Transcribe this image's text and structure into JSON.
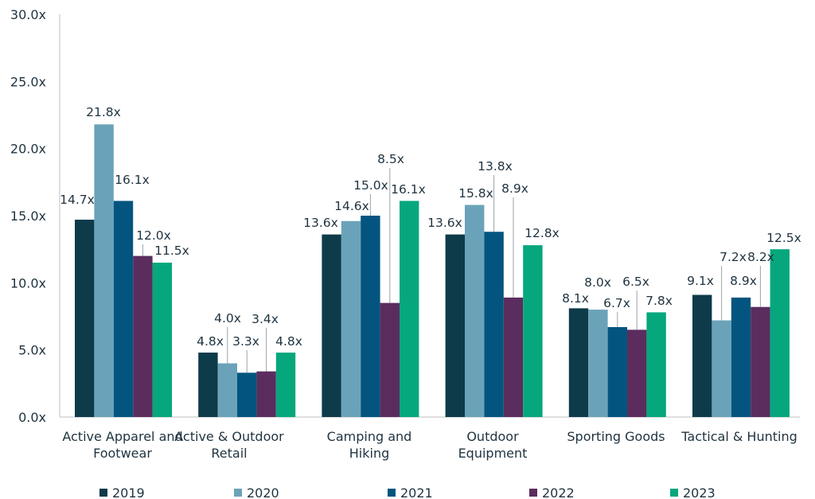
{
  "chart_data": {
    "type": "bar",
    "categories": [
      [
        "Active Apparel and",
        "Footwear"
      ],
      [
        "Active & Outdoor",
        "Retail"
      ],
      [
        "Camping and",
        "Hiking"
      ],
      [
        "Outdoor",
        "Equipment"
      ],
      [
        "Sporting Goods"
      ],
      [
        "Tactical & Hunting"
      ]
    ],
    "series": [
      {
        "name": "2019",
        "color": "#0d3b4a",
        "values": [
          14.7,
          4.8,
          13.6,
          13.6,
          8.1,
          9.1
        ],
        "labels": [
          "14.7x",
          "4.8x",
          "13.6x",
          "13.6x",
          "8.1x",
          "9.1x"
        ]
      },
      {
        "name": "2020",
        "color": "#6aa3b9",
        "values": [
          21.8,
          4.0,
          14.6,
          15.8,
          8.0,
          7.2
        ],
        "labels": [
          "21.8x",
          "4.0x",
          "14.6x",
          "15.8x",
          "8.0x",
          "7.2x"
        ]
      },
      {
        "name": "2021",
        "color": "#03557f",
        "values": [
          16.1,
          3.3,
          15.0,
          13.8,
          6.7,
          8.9
        ],
        "labels": [
          "16.1x",
          "3.3x",
          "15.0x",
          "13.8x",
          "6.7x",
          "8.9x"
        ]
      },
      {
        "name": "2022",
        "color": "#5a2d5e",
        "values": [
          12.0,
          3.4,
          8.5,
          8.9,
          6.5,
          8.2
        ],
        "labels": [
          "12.0x",
          "3.4x",
          "8.5x",
          "8.9x",
          "6.5x",
          "8.2x"
        ]
      },
      {
        "name": "2023",
        "color": "#06a77d",
        "values": [
          11.5,
          4.8,
          16.1,
          12.8,
          7.8,
          12.5
        ],
        "labels": [
          "11.5x",
          "4.8x",
          "16.1x",
          "12.8x",
          "7.8x",
          "12.5x"
        ]
      }
    ],
    "yticks": [
      "0.0x",
      "5.0x",
      "10.0x",
      "15.0x",
      "20.0x",
      "25.0x",
      "30.0x"
    ],
    "ylim": [
      0,
      30
    ],
    "grid": false,
    "legend_position": "bottom",
    "title": "",
    "xlabel": "",
    "ylabel": ""
  }
}
